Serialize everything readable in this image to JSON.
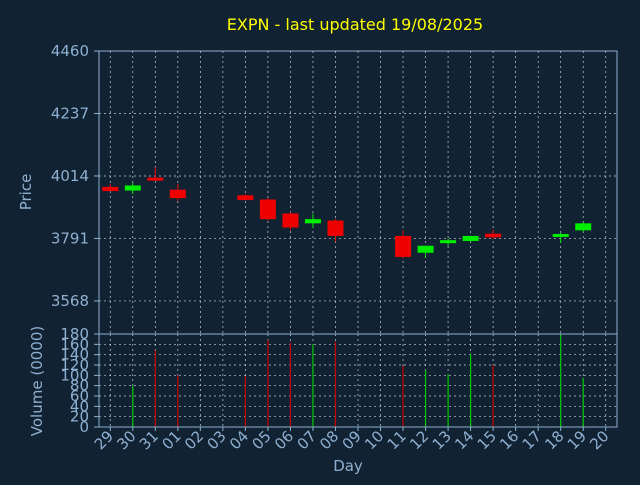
{
  "chart_data": {
    "type": "candlestick",
    "title": "EXPN - last updated 19/08/2025",
    "xlabel": "Day",
    "price_panel": {
      "ylabel": "Price",
      "ylim": [
        3450,
        4460
      ],
      "yticks": [
        3568,
        3791,
        4014,
        4237,
        4460
      ]
    },
    "volume_panel": {
      "ylabel": "Volume (0000)",
      "ylim": [
        0,
        180
      ],
      "yticks": [
        0,
        20,
        40,
        60,
        80,
        100,
        120,
        140,
        160,
        180
      ]
    },
    "categories": [
      "29",
      "30",
      "31",
      "01",
      "02",
      "03",
      "04",
      "05",
      "06",
      "07",
      "08",
      "09",
      "10",
      "11",
      "12",
      "13",
      "14",
      "15",
      "16",
      "17",
      "18",
      "19",
      "20"
    ],
    "candles": [
      {
        "day": "29",
        "open": 3975,
        "high": 3985,
        "low": 3960,
        "close": 3960
      },
      {
        "day": "30",
        "open": 3962,
        "high": 3990,
        "low": 3950,
        "close": 3980
      },
      {
        "day": "31",
        "open": 4008,
        "high": 4045,
        "low": 4000,
        "close": 3998
      },
      {
        "day": "01",
        "open": 3965,
        "high": 3985,
        "low": 3925,
        "close": 3935
      },
      {
        "day": "04",
        "open": 3945,
        "high": 3950,
        "low": 3928,
        "close": 3928
      },
      {
        "day": "05",
        "open": 3930,
        "high": 3935,
        "low": 3855,
        "close": 3860
      },
      {
        "day": "06",
        "open": 3880,
        "high": 3885,
        "low": 3820,
        "close": 3830
      },
      {
        "day": "07",
        "open": 3845,
        "high": 3880,
        "low": 3828,
        "close": 3860
      },
      {
        "day": "08",
        "open": 3855,
        "high": 3860,
        "low": 3780,
        "close": 3800
      },
      {
        "day": "11",
        "open": 3800,
        "high": 3820,
        "low": 3720,
        "close": 3725
      },
      {
        "day": "12",
        "open": 3740,
        "high": 3765,
        "low": 3722,
        "close": 3765
      },
      {
        "day": "13",
        "open": 3780,
        "high": 3790,
        "low": 3765,
        "close": 3785
      },
      {
        "day": "14",
        "open": 3782,
        "high": 3800,
        "low": 3778,
        "close": 3800
      },
      {
        "day": "15",
        "open": 3808,
        "high": 3822,
        "low": 3790,
        "close": 3795
      },
      {
        "day": "18",
        "open": 3800,
        "high": 3810,
        "low": 3775,
        "close": 3807
      },
      {
        "day": "19",
        "open": 3820,
        "high": 3848,
        "low": 3815,
        "close": 3845
      }
    ],
    "volume": [
      {
        "day": "30",
        "value": 80,
        "color": "#00cc00"
      },
      {
        "day": "31",
        "value": 148,
        "color": "#cc0000"
      },
      {
        "day": "01",
        "value": 100,
        "color": "#cc0000"
      },
      {
        "day": "04",
        "value": 98,
        "color": "#cc0000"
      },
      {
        "day": "05",
        "value": 168,
        "color": "#cc0000"
      },
      {
        "day": "06",
        "value": 163,
        "color": "#cc0000"
      },
      {
        "day": "07",
        "value": 160,
        "color": "#00cc00"
      },
      {
        "day": "08",
        "value": 165,
        "color": "#cc0000"
      },
      {
        "day": "11",
        "value": 118,
        "color": "#cc0000"
      },
      {
        "day": "12",
        "value": 110,
        "color": "#00cc00"
      },
      {
        "day": "13",
        "value": 102,
        "color": "#00cc00"
      },
      {
        "day": "14",
        "value": 142,
        "color": "#00cc00"
      },
      {
        "day": "15",
        "value": 120,
        "color": "#cc0000"
      },
      {
        "day": "18",
        "value": 178,
        "color": "#00cc00"
      },
      {
        "day": "19",
        "value": 95,
        "color": "#00cc00"
      }
    ],
    "grid": true,
    "colors": {
      "background": "#112233",
      "title": "#ffff00",
      "axis_text": "#8fb0d0",
      "grid": "#c8d0d8",
      "up": "#00ee00",
      "down": "#ee0000"
    }
  }
}
